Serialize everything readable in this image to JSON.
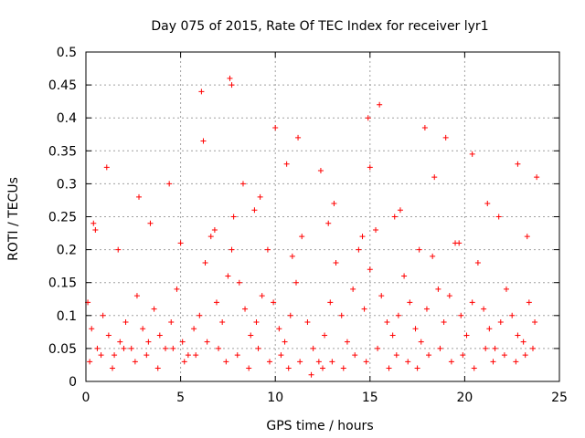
{
  "chart_data": {
    "type": "scatter",
    "title": "Day 075 of 2015, Rate Of TEC Index for receiver lyr1",
    "xlabel": "GPS time / hours",
    "ylabel": "ROTI / TECUs",
    "xlim": [
      0,
      25
    ],
    "ylim": [
      0,
      0.5
    ],
    "xticks": [
      0,
      5,
      10,
      15,
      20,
      25
    ],
    "yticks": [
      0,
      0.05,
      0.1,
      0.15,
      0.2,
      0.25,
      0.3,
      0.35,
      0.4,
      0.45,
      0.5
    ],
    "xtick_labels": [
      "0",
      "5",
      "10",
      "15",
      "20",
      "25"
    ],
    "ytick_labels": [
      "0",
      "0.05",
      "0.1",
      "0.15",
      "0.2",
      "0.25",
      "0.3",
      "0.35",
      "0.4",
      "0.45",
      "0.5"
    ],
    "grid": true,
    "marker": "+",
    "series": [
      {
        "name": "ROTI",
        "color": "#ff0000",
        "x": [
          0.1,
          0.3,
          0.6,
          0.9,
          1.2,
          1.5,
          1.8,
          2.1,
          2.4,
          2.7,
          3.0,
          3.3,
          3.6,
          3.9,
          4.2,
          4.5,
          4.8,
          5.1,
          5.4,
          5.7,
          6.0,
          6.3,
          6.6,
          6.9,
          7.2,
          7.5,
          7.7,
          7.8,
          8.1,
          8.4,
          8.7,
          9.0,
          9.3,
          9.6,
          9.9,
          10.2,
          10.5,
          10.8,
          11.1,
          11.4,
          11.7,
          12.0,
          12.3,
          12.6,
          12.9,
          13.2,
          13.5,
          13.8,
          14.1,
          14.4,
          14.7,
          15.0,
          15.3,
          15.6,
          15.9,
          16.2,
          16.5,
          16.8,
          17.1,
          17.4,
          17.7,
          18.0,
          18.3,
          18.6,
          18.9,
          19.2,
          19.5,
          19.8,
          20.1,
          20.4,
          20.7,
          21.0,
          21.3,
          21.6,
          21.9,
          22.2,
          22.5,
          22.8,
          23.1,
          23.4,
          23.7,
          6.1,
          7.6,
          7.7,
          15.5,
          17.9,
          19.0,
          10.0,
          11.2,
          12.4,
          14.9,
          15.0,
          20.4,
          22.8,
          23.8,
          1.1,
          4.4,
          0.4,
          2.8,
          6.2,
          8.3,
          9.2,
          10.6,
          13.1,
          16.6,
          18.4,
          21.2,
          0.5,
          1.7,
          3.4,
          5.0,
          6.8,
          8.9,
          10.9,
          12.8,
          14.6,
          16.3,
          17.6,
          19.7,
          21.8,
          23.3,
          0.2,
          0.8,
          1.4,
          2.0,
          2.6,
          3.2,
          3.8,
          4.6,
          5.2,
          5.8,
          6.4,
          7.0,
          7.4,
          8.0,
          8.6,
          9.1,
          9.7,
          10.3,
          10.7,
          11.3,
          11.9,
          12.5,
          13.0,
          13.6,
          14.2,
          14.8,
          15.4,
          16.0,
          16.4,
          17.0,
          17.5,
          18.1,
          18.7,
          19.3,
          19.9,
          20.5,
          21.1,
          21.5,
          22.1,
          22.7,
          23.2,
          23.6
        ],
        "y": [
          0.12,
          0.08,
          0.05,
          0.1,
          0.07,
          0.04,
          0.06,
          0.09,
          0.05,
          0.13,
          0.08,
          0.06,
          0.11,
          0.07,
          0.05,
          0.09,
          0.14,
          0.06,
          0.04,
          0.08,
          0.1,
          0.18,
          0.22,
          0.12,
          0.09,
          0.16,
          0.2,
          0.25,
          0.15,
          0.11,
          0.07,
          0.09,
          0.13,
          0.2,
          0.12,
          0.08,
          0.06,
          0.1,
          0.15,
          0.22,
          0.09,
          0.05,
          0.03,
          0.07,
          0.12,
          0.18,
          0.1,
          0.06,
          0.14,
          0.2,
          0.11,
          0.17,
          0.23,
          0.13,
          0.09,
          0.07,
          0.1,
          0.16,
          0.12,
          0.08,
          0.06,
          0.11,
          0.19,
          0.14,
          0.09,
          0.13,
          0.21,
          0.1,
          0.07,
          0.12,
          0.18,
          0.11,
          0.08,
          0.05,
          0.09,
          0.14,
          0.1,
          0.07,
          0.06,
          0.12,
          0.09,
          0.44,
          0.46,
          0.45,
          0.42,
          0.385,
          0.37,
          0.385,
          0.37,
          0.32,
          0.4,
          0.325,
          0.345,
          0.33,
          0.31,
          0.325,
          0.3,
          0.24,
          0.28,
          0.365,
          0.3,
          0.28,
          0.33,
          0.27,
          0.26,
          0.31,
          0.27,
          0.23,
          0.2,
          0.24,
          0.21,
          0.23,
          0.26,
          0.19,
          0.24,
          0.22,
          0.25,
          0.2,
          0.21,
          0.25,
          0.22,
          0.03,
          0.04,
          0.02,
          0.05,
          0.03,
          0.04,
          0.02,
          0.05,
          0.03,
          0.04,
          0.06,
          0.05,
          0.03,
          0.04,
          0.02,
          0.05,
          0.03,
          0.04,
          0.02,
          0.03,
          0.01,
          0.02,
          0.03,
          0.02,
          0.04,
          0.03,
          0.05,
          0.02,
          0.04,
          0.03,
          0.02,
          0.04,
          0.05,
          0.03,
          0.04,
          0.02,
          0.05,
          0.03,
          0.04,
          0.03,
          0.04,
          0.05
        ]
      }
    ]
  }
}
